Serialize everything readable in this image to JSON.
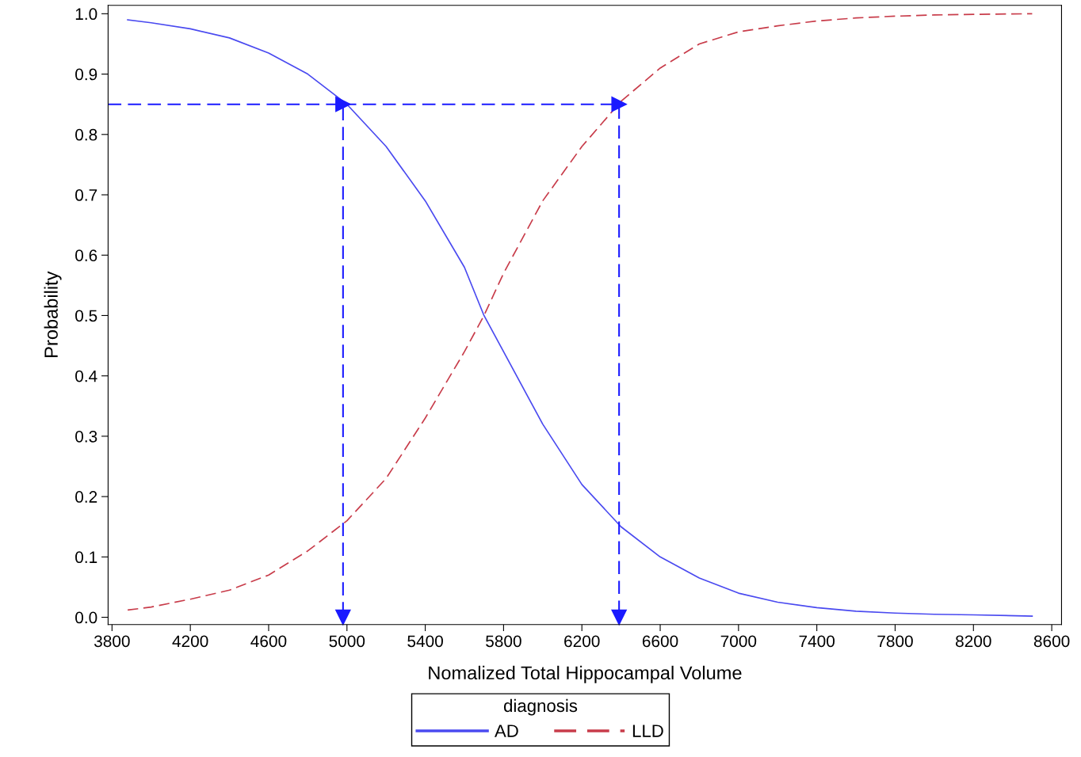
{
  "chart_data": {
    "type": "line",
    "xlabel": "Nomalized Total Hippocampal Volume",
    "ylabel": "Probability",
    "legend_title": "diagnosis",
    "legend": "bottom",
    "grid": false,
    "xlim": [
      3780,
      8650
    ],
    "xticks": [
      3800,
      4200,
      4600,
      5000,
      5400,
      5800,
      6200,
      6600,
      7000,
      7400,
      7800,
      8200,
      8600
    ],
    "ylim": [
      -0.012,
      1.014
    ],
    "yticks": [
      {
        "value": 0,
        "label": "0.0"
      },
      0.1,
      0.2,
      0.3,
      0.4,
      0.5,
      0.6,
      0.7,
      0.8,
      0.9,
      {
        "value": 1,
        "label": "1.0"
      }
    ],
    "series": [
      {
        "name": "AD",
        "color": "#4a4af0",
        "line_style": "solid",
        "marker": "none",
        "x": [
          3880,
          4000,
          4200,
          4400,
          4600,
          4800,
          5000,
          5200,
          5400,
          5600,
          5700,
          5800,
          6000,
          6200,
          6400,
          6600,
          6800,
          7000,
          7200,
          7400,
          7600,
          7800,
          8000,
          8200,
          8500
        ],
        "values": [
          0.99,
          0.985,
          0.975,
          0.96,
          0.935,
          0.9,
          0.85,
          0.78,
          0.69,
          0.58,
          0.5,
          0.44,
          0.32,
          0.22,
          0.15,
          0.1,
          0.065,
          0.04,
          0.025,
          0.016,
          0.01,
          0.007,
          0.005,
          0.004,
          0.002
        ]
      },
      {
        "name": "LLD",
        "color": "#c83c4a",
        "line_style": "dashed",
        "marker": "none",
        "x": [
          3880,
          4000,
          4200,
          4400,
          4600,
          4800,
          5000,
          5200,
          5400,
          5600,
          5700,
          5800,
          6000,
          6200,
          6400,
          6600,
          6800,
          7000,
          7200,
          7400,
          7600,
          7800,
          8000,
          8200,
          8500
        ],
        "values": [
          0.012,
          0.017,
          0.03,
          0.045,
          0.07,
          0.11,
          0.16,
          0.23,
          0.33,
          0.44,
          0.5,
          0.57,
          0.69,
          0.78,
          0.855,
          0.91,
          0.95,
          0.97,
          0.98,
          0.988,
          0.993,
          0.996,
          0.998,
          0.999,
          1.0
        ]
      },
      {
        "color": "#1a1aff",
        "line_style": "dashed",
        "marker": "triangle",
        "x": [
          3780,
          4980,
          4980
        ],
        "values": [
          0.85,
          0.85,
          0
        ]
      },
      {
        "color": "#1a1aff",
        "line_style": "dashed",
        "marker": "triangle",
        "x": [
          4980,
          6390,
          6390
        ],
        "values": [
          0.85,
          0.85,
          0
        ]
      }
    ]
  }
}
